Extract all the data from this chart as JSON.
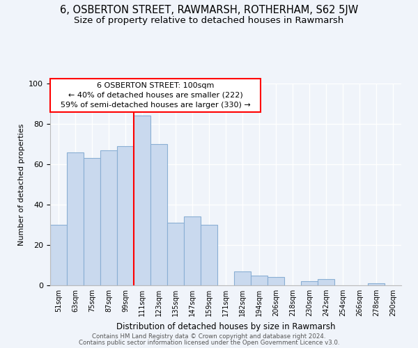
{
  "title": "6, OSBERTON STREET, RAWMARSH, ROTHERHAM, S62 5JW",
  "subtitle": "Size of property relative to detached houses in Rawmarsh",
  "xlabel": "Distribution of detached houses by size in Rawmarsh",
  "ylabel": "Number of detached properties",
  "bar_labels": [
    "51sqm",
    "63sqm",
    "75sqm",
    "87sqm",
    "99sqm",
    "111sqm",
    "123sqm",
    "135sqm",
    "147sqm",
    "159sqm",
    "171sqm",
    "182sqm",
    "194sqm",
    "206sqm",
    "218sqm",
    "230sqm",
    "242sqm",
    "254sqm",
    "266sqm",
    "278sqm",
    "290sqm"
  ],
  "bar_values": [
    30,
    66,
    63,
    67,
    69,
    84,
    70,
    31,
    34,
    30,
    0,
    7,
    5,
    4,
    0,
    2,
    3,
    0,
    0,
    1,
    0
  ],
  "bar_color": "#c9d9ee",
  "bar_edge_color": "#8aafd4",
  "annotation_line_text": "6 OSBERTON STREET: 100sqm\n← 40% of detached houses are smaller (222)\n59% of semi-detached houses are larger (330) →",
  "ylim": [
    0,
    100
  ],
  "footer1": "Contains HM Land Registry data © Crown copyright and database right 2024.",
  "footer2": "Contains public sector information licensed under the Open Government Licence v3.0.",
  "title_fontsize": 10.5,
  "subtitle_fontsize": 9.5,
  "background_color": "#f0f4fa"
}
